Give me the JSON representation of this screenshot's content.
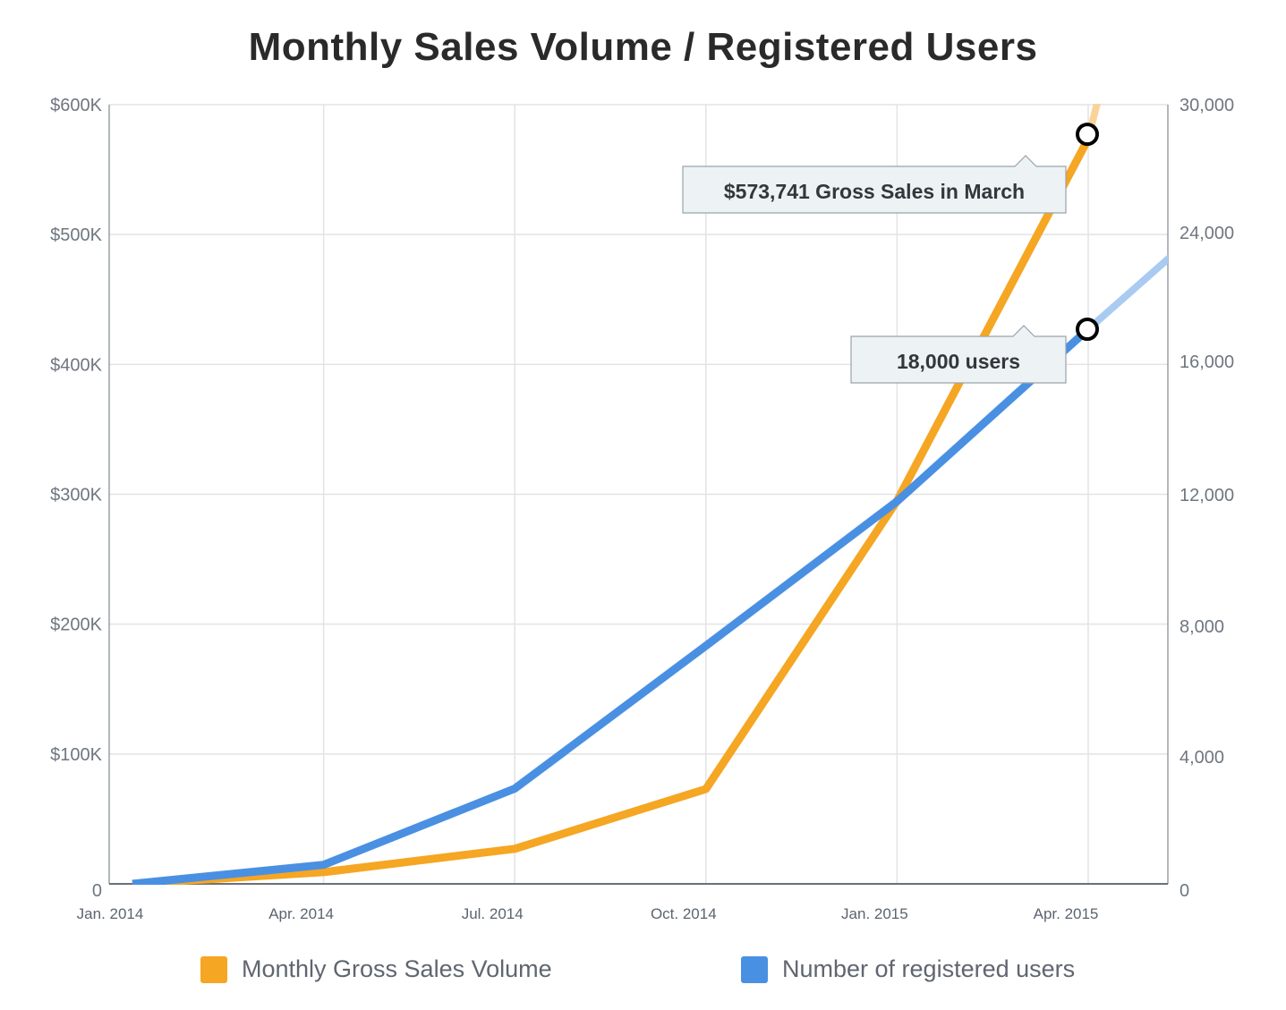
{
  "title": "Monthly Sales Volume / Registered Users",
  "colors": {
    "sales": "#f5a623",
    "sales_projected": "#f9d49a",
    "users": "#4a90e2",
    "users_projected": "#a9cbf2",
    "grid": "#e3e3e3",
    "axis": "#9aa0a6"
  },
  "chart_data": {
    "type": "line",
    "x_labels": [
      "Jan. 2014",
      "Apr. 2014",
      "Jul. 2014",
      "Oct. 2014",
      "Jan. 2015",
      "Apr. 2015"
    ],
    "x_range": [
      "2014-01",
      "2015-08"
    ],
    "y_left": {
      "ticks": [
        0,
        100000,
        200000,
        300000,
        400000,
        500000,
        600000
      ],
      "tick_labels": [
        "0",
        "$100K",
        "$200K",
        "$300K",
        "$400K",
        "$500K",
        "$600K"
      ],
      "range": [
        0,
        600000
      ]
    },
    "y_right": {
      "ticks": [
        0,
        4000,
        8000,
        12000,
        16000,
        24000,
        30000
      ],
      "tick_labels": [
        "0",
        "4,000",
        "8,000",
        "12,000",
        "16,000",
        "24,000",
        "30,000"
      ]
    },
    "grid": true,
    "legend_position": "bottom",
    "series": [
      {
        "name": "Monthly Gross Sales Volume",
        "axis": "left",
        "color": "#f5a623",
        "points": [
          [
            "2014-01",
            0
          ],
          [
            "2014-04",
            9000
          ],
          [
            "2014-07",
            27000
          ],
          [
            "2014-10",
            73000
          ],
          [
            "2015-01",
            295000
          ],
          [
            "2015-04",
            573741
          ]
        ],
        "projection": [
          [
            "2015-04",
            573741
          ],
          [
            "2015-05",
            770000
          ]
        ]
      },
      {
        "name": "Number of registered users",
        "axis": "right",
        "color": "#4a90e2",
        "points": [
          [
            "2014-01",
            0
          ],
          [
            "2014-04",
            600
          ],
          [
            "2014-07",
            3000
          ],
          [
            "2014-10",
            7400
          ],
          [
            "2015-01",
            11800
          ],
          [
            "2015-04",
            18000
          ]
        ],
        "projection": [
          [
            "2015-04",
            18000
          ],
          [
            "2015-08",
            30000
          ]
        ]
      }
    ],
    "annotations": [
      {
        "series": 0,
        "at": "2015-04",
        "text": "$573,741 Gross Sales in March"
      },
      {
        "series": 1,
        "at": "2015-04",
        "text": "18,000 users"
      }
    ]
  },
  "legend": [
    {
      "label": "Monthly Gross Sales Volume",
      "color": "#f5a623"
    },
    {
      "label": "Number of registered users",
      "color": "#4a90e2"
    }
  ]
}
